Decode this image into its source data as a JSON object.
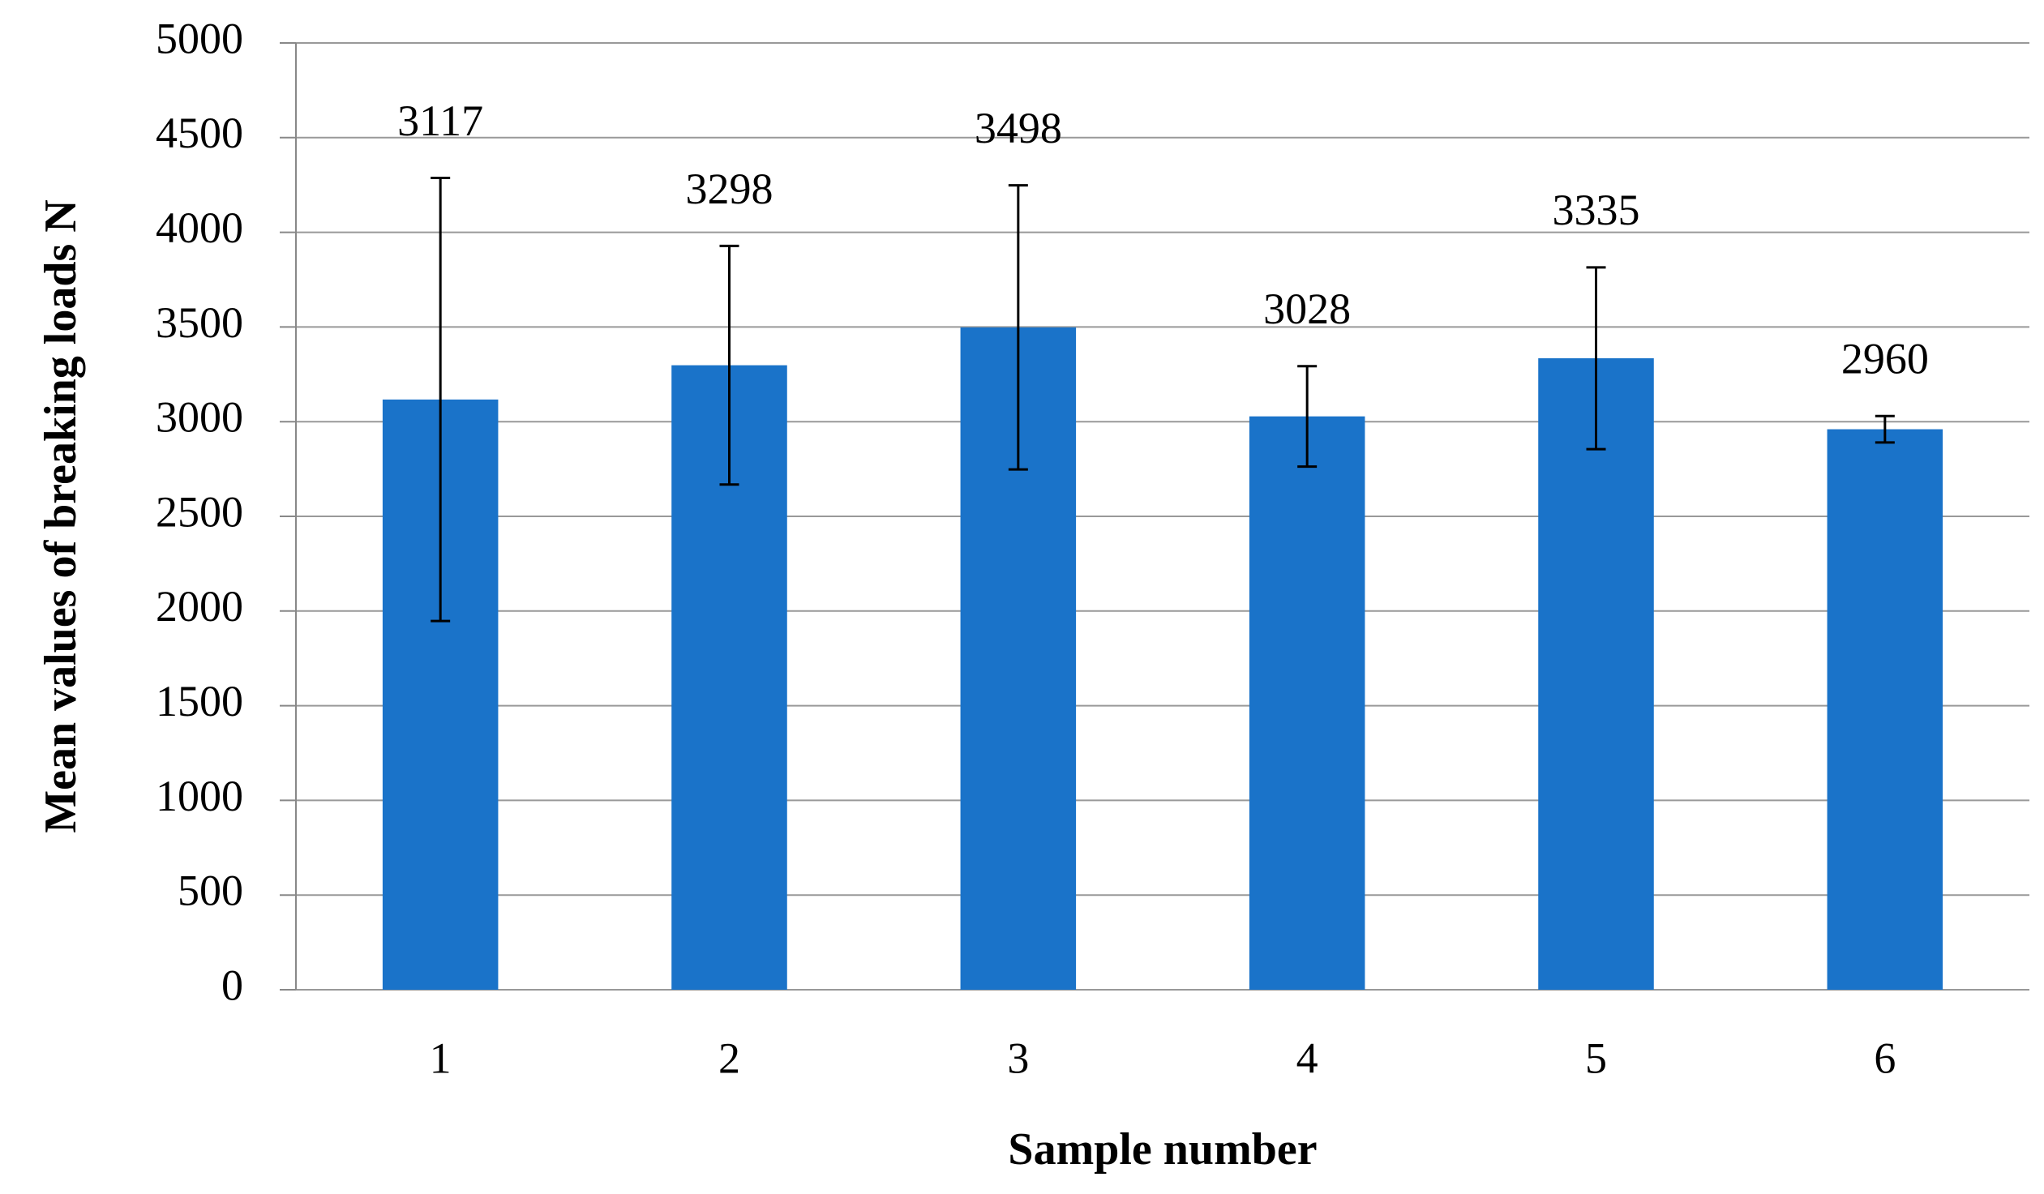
{
  "chart_data": {
    "type": "bar",
    "x_label": "Sample number",
    "y_label": "Mean values of breaking loads N",
    "categories": [
      "1",
      "2",
      "3",
      "4",
      "5",
      "6"
    ],
    "values": [
      3117,
      3298,
      3498,
      3028,
      3335,
      2960
    ],
    "errors": [
      1170,
      630,
      750,
      265,
      480,
      70
    ],
    "color": "#1a73c9",
    "ylim": [
      0,
      5000
    ],
    "yticks": [
      0,
      500,
      1000,
      1500,
      2000,
      2500,
      3000,
      3500,
      4000,
      4500,
      5000
    ],
    "grid": true
  }
}
